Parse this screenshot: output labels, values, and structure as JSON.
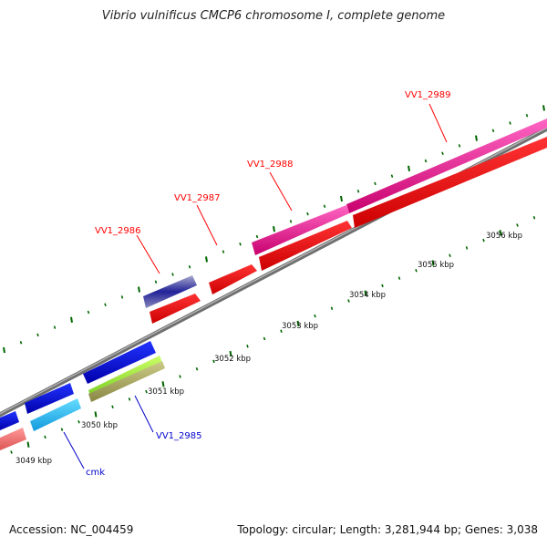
{
  "title": "Vibrio vulnificus CMCP6 chromosome I, complete genome",
  "footer": {
    "accession": "Accession: NC_004459",
    "summary": "Topology: circular; Length: 3,281,944 bp; Genes: 3,038"
  },
  "axis": {
    "ticks": [
      "3049 kbp",
      "3050 kbp",
      "3051 kbp",
      "3052 kbp",
      "3053 kbp",
      "3054 kbp",
      "3055 kbp",
      "3056 kbp"
    ]
  },
  "gene_labels": {
    "VV1_2985": "VV1_2985",
    "cmk": "cmk",
    "VV1_2986": "VV1_2986",
    "VV1_2987": "VV1_2987",
    "VV1_2988": "VV1_2988",
    "VV1_2989": "VV1_2989"
  },
  "colors": {
    "forward_label": "#ff0000",
    "reverse_label": "#0000cc",
    "tick": "#006600",
    "backbone": "#888888",
    "red": "#ff0000",
    "pink": "#e6138c",
    "blue": "#0000dd",
    "light_blue": "#33ccff",
    "lime": "#99ee33",
    "olive": "#aaaa66",
    "salmon": "#ee7777",
    "navy": "#222299"
  }
}
